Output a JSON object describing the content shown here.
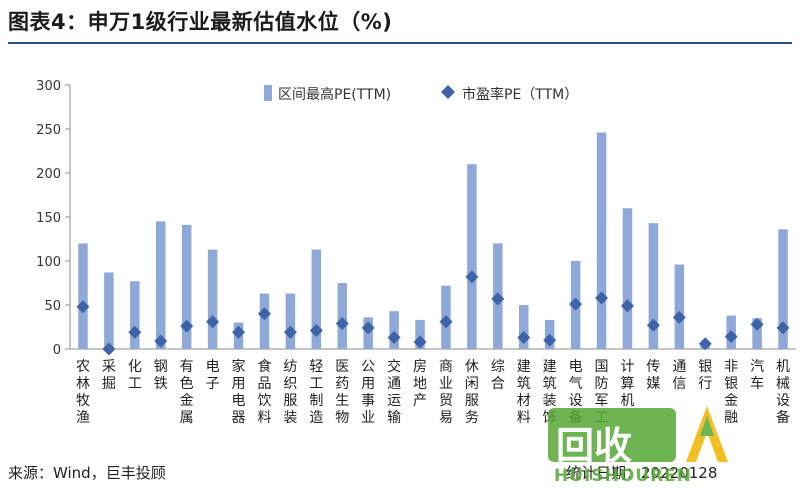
{
  "title": "图表4：申万1级行业最新估值水位（%)",
  "footer": {
    "source": "来源：Wind，巨丰投顾",
    "date_label": "统计日期：",
    "date_value": "20220128"
  },
  "watermark": {
    "text": "回收",
    "subtext": "HUISHOUREN"
  },
  "colors": {
    "bar": "#8ea9d8",
    "marker": "#3f63a8",
    "axis": "#8c8c8c",
    "title_rule": "#2a4f86"
  },
  "chart_data": {
    "type": "bar",
    "title": "",
    "xlabel": "",
    "ylabel": "",
    "ylim": [
      0,
      300
    ],
    "yticks": [
      0,
      50,
      100,
      150,
      200,
      250,
      300
    ],
    "grid": false,
    "legend": "top-center",
    "categories": [
      "农林牧渔",
      "采掘",
      "化工",
      "钢铁",
      "有色金属",
      "电子",
      "家用电器",
      "食品饮料",
      "纺织服装",
      "轻工制造",
      "医药生物",
      "公用事业",
      "交通运输",
      "房地产",
      "商业贸易",
      "休闲服务",
      "综合",
      "建筑材料",
      "建筑装饰",
      "电气设备",
      "国防军工",
      "计算机",
      "传媒",
      "通信",
      "银行",
      "非银金融",
      "汽车",
      "机械设备"
    ],
    "series": [
      {
        "name": "区间最高PE(TTM)",
        "kind": "bar",
        "values": [
          120,
          87,
          77,
          145,
          141,
          113,
          30,
          63,
          63,
          113,
          75,
          36,
          43,
          33,
          72,
          210,
          120,
          50,
          33,
          100,
          246,
          160,
          143,
          96,
          8,
          38,
          35,
          136
        ]
      },
      {
        "name": "市盈率PE（TTM）",
        "kind": "marker",
        "values": [
          48,
          0,
          19,
          9,
          26,
          31,
          19,
          40,
          19,
          21,
          29,
          24,
          13,
          8,
          31,
          82,
          57,
          13,
          10,
          51,
          58,
          49,
          27,
          36,
          6,
          14,
          28,
          24
        ]
      }
    ]
  }
}
